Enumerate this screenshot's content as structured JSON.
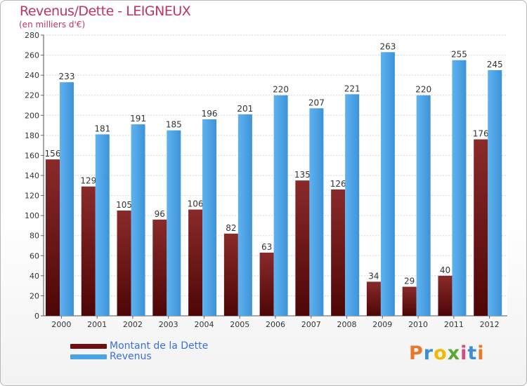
{
  "chart_data": {
    "type": "bar",
    "title": "Revenus/Dette - LEIGNEUX",
    "subtitle": "(en milliers d'€)",
    "categories": [
      "2000",
      "2001",
      "2002",
      "2003",
      "2004",
      "2005",
      "2006",
      "2007",
      "2008",
      "2009",
      "2010",
      "2011",
      "2012"
    ],
    "series": [
      {
        "name": "Montant de la Dette",
        "color": "#7a1c1c",
        "values": [
          156,
          129,
          105,
          96,
          106,
          82,
          63,
          135,
          126,
          34,
          29,
          40,
          176
        ]
      },
      {
        "name": "Revenus",
        "color": "#4aa3e6",
        "values": [
          233,
          181,
          191,
          185,
          196,
          201,
          220,
          207,
          221,
          263,
          220,
          255,
          245
        ]
      }
    ],
    "ylim": [
      0,
      280
    ],
    "yticks": [
      0,
      20,
      40,
      60,
      80,
      100,
      120,
      140,
      160,
      180,
      200,
      220,
      240,
      260,
      280
    ],
    "grid": true,
    "legend_position": "bottom-left"
  },
  "logo": {
    "text": "Proxiti",
    "letters": [
      "P",
      "r",
      "o",
      "x",
      "i",
      "t",
      "i"
    ]
  }
}
